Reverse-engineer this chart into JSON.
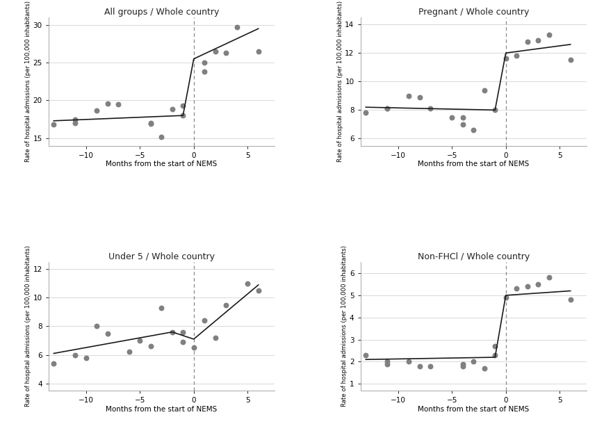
{
  "panels": [
    {
      "title": "All groups / Whole country",
      "ylabel": "Rate of hospital admissions (per 100,000 inhabitants)",
      "xlabel": "Months from the start of NEMS",
      "ylim": [
        14,
        31
      ],
      "yticks": [
        15,
        20,
        25,
        30
      ],
      "xlim": [
        -13.5,
        7.5
      ],
      "xticks": [
        -10,
        -5,
        0,
        5
      ],
      "observed_x": [
        -13,
        -11,
        -11,
        -9,
        -8,
        -7,
        -4,
        -4,
        -3,
        -2,
        -1,
        -1,
        1,
        1,
        2,
        3,
        4,
        6
      ],
      "observed_y": [
        16.8,
        17.5,
        17.0,
        18.7,
        19.6,
        19.5,
        16.9,
        17.0,
        15.2,
        18.8,
        19.3,
        18.0,
        23.8,
        25.0,
        26.5,
        26.3,
        29.7,
        26.5
      ],
      "pred_x": [
        -13,
        -1,
        -1,
        0,
        0,
        6
      ],
      "pred_y": [
        17.3,
        18.0,
        18.0,
        25.5,
        25.5,
        29.5
      ]
    },
    {
      "title": "Pregnant / Whole country",
      "ylabel": "Rate of hospital admissions (per 100,000 inhabitants)",
      "xlabel": "Months from the start of NEMS",
      "ylim": [
        5.5,
        14.5
      ],
      "yticks": [
        6,
        8,
        10,
        12,
        14
      ],
      "xlim": [
        -13.5,
        7.5
      ],
      "xticks": [
        -10,
        -5,
        0,
        5
      ],
      "observed_x": [
        -13,
        -11,
        -11,
        -9,
        -8,
        -7,
        -5,
        -4,
        -4,
        -3,
        -2,
        -1,
        0,
        1,
        2,
        3,
        4,
        6
      ],
      "observed_y": [
        7.8,
        8.1,
        8.1,
        9.0,
        8.9,
        8.1,
        7.5,
        7.5,
        7.0,
        6.6,
        9.4,
        8.0,
        11.6,
        11.8,
        12.8,
        12.9,
        13.3,
        11.5
      ],
      "pred_x": [
        -13,
        -1,
        -1,
        0,
        0,
        6
      ],
      "pred_y": [
        8.2,
        8.0,
        8.0,
        12.0,
        12.0,
        12.6
      ]
    },
    {
      "title": "Under 5 / Whole country",
      "ylabel": "Rate of hospital admissions (per 100,000 inhabitants)",
      "xlabel": "Months from the start of NEMS",
      "ylim": [
        3.5,
        12.5
      ],
      "yticks": [
        4,
        6,
        8,
        10,
        12
      ],
      "xlim": [
        -13.5,
        7.5
      ],
      "xticks": [
        -10,
        -5,
        0,
        5
      ],
      "observed_x": [
        -13,
        -11,
        -10,
        -9,
        -8,
        -6,
        -5,
        -4,
        -3,
        -2,
        -1,
        -1,
        0,
        1,
        2,
        3,
        5,
        6
      ],
      "observed_y": [
        5.4,
        6.0,
        5.8,
        8.0,
        7.5,
        6.2,
        7.0,
        6.6,
        9.3,
        7.6,
        6.9,
        7.6,
        6.5,
        8.4,
        7.2,
        9.5,
        11.0,
        10.5
      ],
      "pred_x": [
        -13,
        -2,
        -2,
        0,
        0,
        6
      ],
      "pred_y": [
        6.1,
        7.6,
        7.6,
        7.1,
        7.1,
        10.9
      ]
    },
    {
      "title": "Non-FHCl / Whole country",
      "ylabel": "Rate of hospital admissions (per 100,000 inhabitants)",
      "xlabel": "Months from the start of NEMS",
      "ylim": [
        0.7,
        6.5
      ],
      "yticks": [
        1,
        2,
        3,
        4,
        5,
        6
      ],
      "xlim": [
        -13.5,
        7.5
      ],
      "xticks": [
        -10,
        -5,
        0,
        5
      ],
      "observed_x": [
        -13,
        -11,
        -11,
        -9,
        -8,
        -7,
        -4,
        -4,
        -3,
        -2,
        -1,
        -1,
        0,
        1,
        2,
        3,
        4,
        6
      ],
      "observed_y": [
        2.3,
        1.9,
        2.0,
        2.0,
        1.8,
        1.8,
        1.8,
        1.9,
        2.0,
        1.7,
        2.7,
        2.3,
        4.9,
        5.3,
        5.4,
        5.5,
        5.8,
        4.8
      ],
      "pred_x": [
        -13,
        -1,
        -1,
        0,
        0,
        6
      ],
      "pred_y": [
        2.1,
        2.2,
        2.2,
        5.0,
        5.0,
        5.2
      ]
    }
  ],
  "dot_color": "#808080",
  "line_color": "#1a1a1a",
  "dot_size": 22,
  "background_color": "#ffffff",
  "grid_color": "#d8d8d8",
  "vline_color": "#888888"
}
